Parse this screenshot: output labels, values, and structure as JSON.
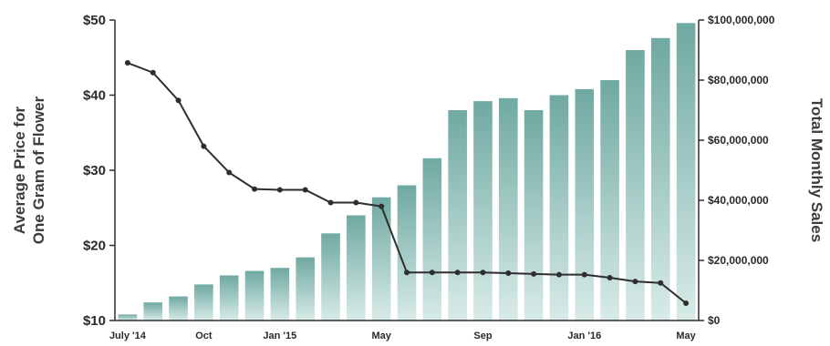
{
  "chart_data": {
    "type": "bar",
    "title": "",
    "ylabel_left_lines": [
      "Average Price for",
      "One Gram of Flower"
    ],
    "ylabel_right": "Total Monthly Sales",
    "x": [
      "Jul 2014",
      "Aug 2014",
      "Sep 2014",
      "Oct 2014",
      "Nov 2014",
      "Dec 2014",
      "Jan 2015",
      "Feb 2015",
      "Mar 2015",
      "Apr 2015",
      "May 2015",
      "Jun 2015",
      "Jul 2015",
      "Aug 2015",
      "Sep 2015",
      "Oct 2015",
      "Nov 2015",
      "Dec 2015",
      "Jan 2016",
      "Feb 2016",
      "Mar 2016",
      "Apr 2016",
      "May 2016"
    ],
    "x_tick_labels": [
      {
        "index": 0,
        "label": "July '14"
      },
      {
        "index": 3,
        "label": "Oct"
      },
      {
        "index": 6,
        "label": "Jan '15"
      },
      {
        "index": 10,
        "label": "May"
      },
      {
        "index": 14,
        "label": "Sep"
      },
      {
        "index": 18,
        "label": "Jan '16"
      },
      {
        "index": 22,
        "label": "May"
      }
    ],
    "y_left": {
      "ticks": [
        "$50",
        "$40",
        "$30",
        "$20",
        "$10"
      ],
      "tick_values": [
        50,
        40,
        30,
        20,
        10
      ],
      "ylim": [
        10,
        50
      ]
    },
    "y_right": {
      "ticks": [
        "$100,000,000",
        "$80,000,000",
        "$60,000,000",
        "$40,000,000",
        "$20,000,000",
        "$0"
      ],
      "tick_values": [
        100000000,
        80000000,
        60000000,
        40000000,
        20000000,
        0
      ],
      "ylim": [
        0,
        100000000
      ]
    },
    "series": [
      {
        "kind": "bar",
        "axis": "right",
        "values": [
          2000000,
          6000000,
          8000000,
          12000000,
          15000000,
          16500000,
          17500000,
          21000000,
          29000000,
          35000000,
          41000000,
          45000000,
          54000000,
          70000000,
          73000000,
          74000000,
          70000000,
          75000000,
          77000000,
          80000000,
          90000000,
          94000000,
          99000000
        ]
      },
      {
        "kind": "line",
        "axis": "left",
        "values": [
          44.3,
          43.0,
          39.3,
          33.2,
          29.7,
          27.5,
          27.4,
          27.4,
          25.7,
          25.7,
          25.2,
          16.4,
          16.4,
          16.4,
          16.4,
          16.3,
          16.2,
          16.1,
          16.1,
          15.7,
          15.2,
          15.0,
          12.3
        ]
      }
    ],
    "colors": {
      "bar_top": "#6fa9a1",
      "bar_bottom": "#d8ebe8",
      "line": "#2e2e2e",
      "axis": "#2e2e2e",
      "text": "#2a2a2a"
    },
    "grid": false,
    "legend": "none"
  }
}
